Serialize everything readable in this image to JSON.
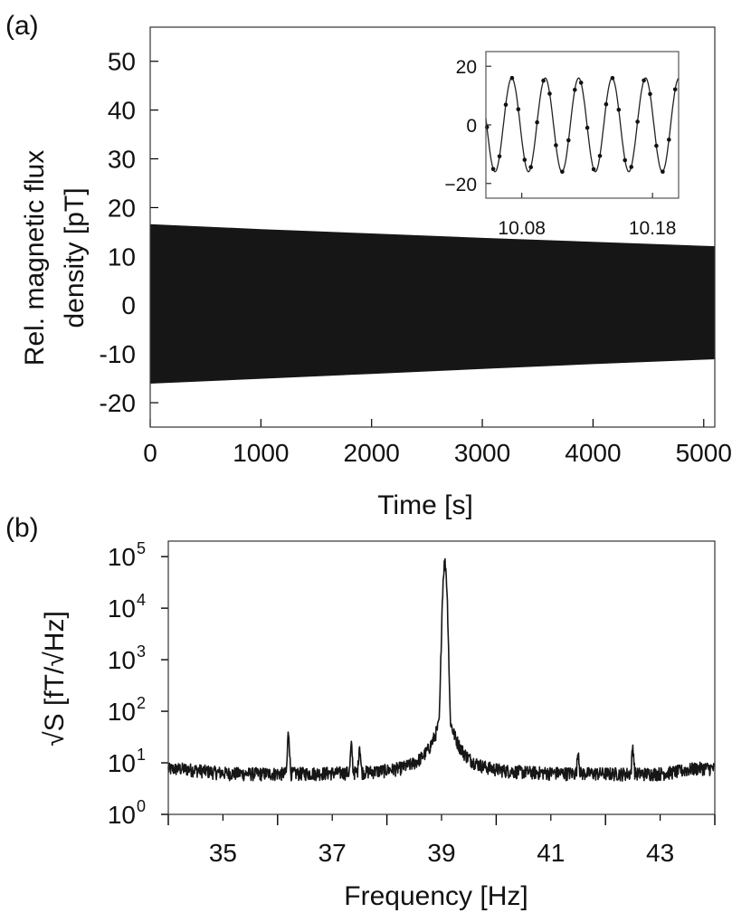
{
  "chart_data": [
    {
      "panel": "(a)",
      "type": "area",
      "xlabel": "Time [s]",
      "ylabel_line1": "Rel. magnetic flux",
      "ylabel_line2": "density [pT]",
      "xlim": [
        0,
        5100
      ],
      "ylim": [
        -25,
        57
      ],
      "xticks": [
        0,
        1000,
        2000,
        3000,
        4000,
        5000
      ],
      "yticks": [
        -20,
        -10,
        0,
        10,
        20,
        30,
        40,
        50
      ],
      "ytick_labels": [
        "-20",
        "-10",
        "0",
        "10",
        "20",
        "30",
        "40",
        "50"
      ],
      "series": [
        {
          "x": [
            0,
            1000,
            2000,
            3000,
            4000,
            5100
          ],
          "upper": [
            16.5,
            15.5,
            14.6,
            13.7,
            12.9,
            12.0
          ],
          "lower": [
            -16.0,
            -15.0,
            -14.0,
            -13.0,
            -12.0,
            -11.0
          ]
        }
      ],
      "inset": {
        "type": "line",
        "xlim": [
          10.0525,
          10.2
        ],
        "ylim": [
          -25,
          25
        ],
        "xticks": [
          10.08,
          10.18
        ],
        "yticks": [
          -20,
          0,
          20
        ],
        "ytick_labels": [
          "−20",
          "0",
          "20"
        ],
        "amplitude": 16,
        "period_s": 0.0256,
        "phase_x0": 10.0595,
        "points_per_period": 5.33
      }
    },
    {
      "panel": "(b)",
      "type": "line",
      "xlabel": "Frequency [Hz]",
      "ylabel": "√S [fT/√Hz]",
      "yscale": "log",
      "xlim": [
        34,
        44
      ],
      "ylim": [
        1,
        200000
      ],
      "xticks": [
        35,
        37,
        39,
        41,
        43
      ],
      "minor_xticks": [
        34,
        36,
        38,
        40,
        42,
        44
      ],
      "yticks": [
        {
          "value": 1,
          "base": "10",
          "exp": "0"
        },
        {
          "value": 10,
          "base": "10",
          "exp": "1"
        },
        {
          "value": 100,
          "base": "10",
          "exp": "2"
        },
        {
          "value": 1000,
          "base": "10",
          "exp": "3"
        },
        {
          "value": 10000,
          "base": "10",
          "exp": "4"
        },
        {
          "value": 100000,
          "base": "10",
          "exp": "5"
        }
      ],
      "baseline_level": 6,
      "features": [
        {
          "x": 39.06,
          "peak": 75000
        },
        {
          "x": 36.2,
          "peak": 32
        },
        {
          "x": 37.35,
          "peak": 14
        },
        {
          "x": 37.5,
          "peak": 15
        },
        {
          "x": 42.5,
          "peak": 14
        },
        {
          "x": 41.5,
          "peak": 10
        }
      ]
    }
  ],
  "colors": {
    "trace": "#161616",
    "axis": "#000000",
    "frame": "#444444"
  }
}
